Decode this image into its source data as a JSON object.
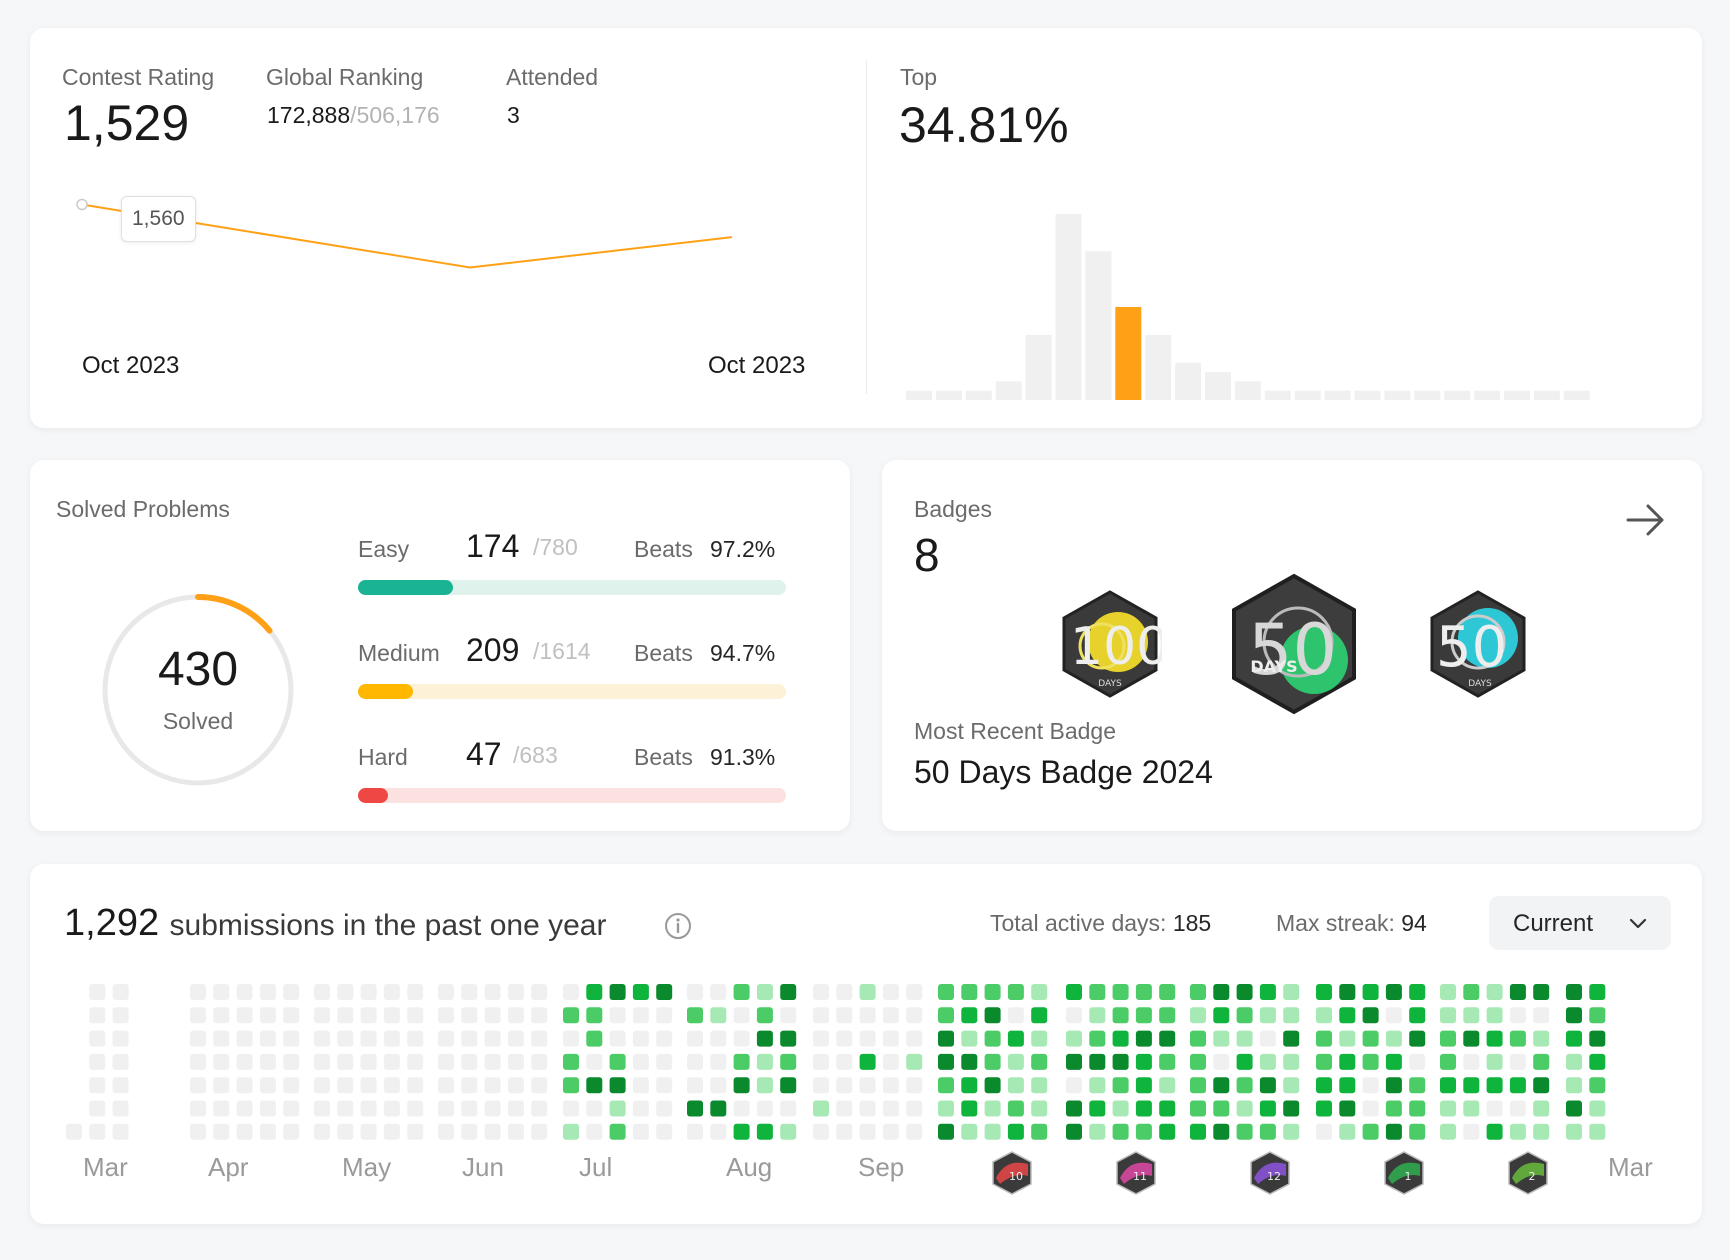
{
  "contest": {
    "rating_label": "Contest Rating",
    "rating_value": "1,529",
    "ranking_label": "Global Ranking",
    "ranking_value": "172,888",
    "ranking_total": "/506,176",
    "attended_label": "Attended",
    "attended_value": "3",
    "top_label": "Top",
    "top_value": "34.81%",
    "chart_tooltip": "1,560",
    "x_start_label": "Oct 2023",
    "x_end_label": "Oct 2023"
  },
  "solved": {
    "title": "Solved Problems",
    "total": "430",
    "total_label": "Solved",
    "beats_label": "Beats",
    "items": [
      {
        "name": "Easy",
        "solved": "174",
        "total": "/780",
        "beats": "97.2%",
        "fraction": 0.223,
        "fill_color": "#1ab394",
        "track_color": "#dff3ec"
      },
      {
        "name": "Medium",
        "solved": "209",
        "total": "/1614",
        "beats": "94.7%",
        "fraction": 0.129,
        "fill_color": "#ffb700",
        "track_color": "#fdf2d8"
      },
      {
        "name": "Hard",
        "solved": "47",
        "total": "/683",
        "beats": "91.3%",
        "fraction": 0.069,
        "fill_color": "#ef4743",
        "track_color": "#fbe1e0"
      }
    ]
  },
  "badges": {
    "title": "Badges",
    "count": "8",
    "recent_label": "Most Recent Badge",
    "recent_name": "50 Days Badge 2024",
    "badge1_number": "100",
    "badge1_caption": "DAYS",
    "badge2_number": "50",
    "badge2_caption": "DAYS",
    "badge3_number": "50",
    "badge3_caption": "DAYS"
  },
  "submissions": {
    "count": "1,292",
    "text": "submissions in the past one year",
    "active_days_label": "Total active days:",
    "active_days_value": "185",
    "max_streak_label": "Max streak:",
    "max_streak_value": "94",
    "dropdown_value": "Current",
    "months": [
      "Mar",
      "Apr",
      "May",
      "Jun",
      "Jul",
      "Aug",
      "Sep",
      "Mar"
    ],
    "month_badges": [
      {
        "number": "10",
        "color": "#e04646"
      },
      {
        "number": "11",
        "color": "#d6479e"
      },
      {
        "number": "12",
        "color": "#8a52d6"
      },
      {
        "number": "1",
        "color": "#2fa84f"
      },
      {
        "number": "2",
        "color": "#65b53d"
      }
    ]
  },
  "chart_data": [
    {
      "type": "line",
      "x": [
        "Oct 2023",
        "Oct 2023",
        "Oct 2023"
      ],
      "values": [
        1560,
        1500,
        1529
      ],
      "annotations": [
        "1,560"
      ],
      "color": "#ffa116",
      "xlabel": "",
      "ylabel": ""
    },
    {
      "type": "bar",
      "values": [
        1,
        1,
        1,
        2,
        7,
        20,
        16,
        10,
        7,
        4,
        3,
        2,
        1,
        1,
        1,
        1,
        1,
        1,
        1,
        1,
        1,
        1,
        1
      ],
      "highlight_index": 7,
      "highlight_color": "#ffa116",
      "color": "#f0f0f0",
      "grid": false
    }
  ]
}
